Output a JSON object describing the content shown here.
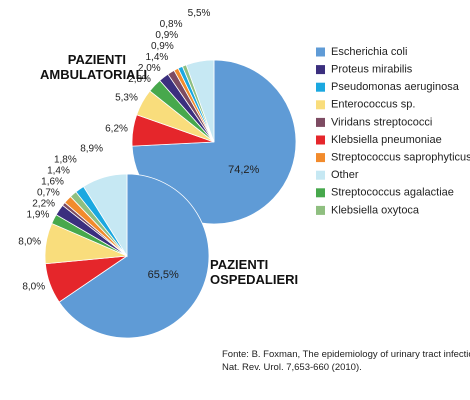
{
  "legend": {
    "labels": [
      "Escherichia coli",
      "Proteus mirabilis",
      "Pseudomonas aeruginosa",
      "Enterococcus sp.",
      "Viridans streptococci",
      "Klebsiella pneumoniae",
      "Streptococcus saprophyticus",
      "Other",
      "Streptococcus agalactiae",
      "Klebsiella oxytoca"
    ],
    "colors": [
      "#5f9bd6",
      "#3b2f7e",
      "#1ba8e0",
      "#f9dd7c",
      "#7d4b62",
      "#e5262b",
      "#f28b2c",
      "#c6e8f3",
      "#47a84c",
      "#8fbf80"
    ]
  },
  "chart_data": [
    {
      "type": "pie",
      "title": "PAZIENTI AMBULATORIALI",
      "categories": [
        "Escherichia coli",
        "Klebsiella pneumoniae",
        "Enterococcus sp.",
        "Streptococcus agalactiae",
        "Proteus mirabilis",
        "Viridans streptococci",
        "Streptococcus saprophyticus",
        "Pseudomonas aeruginosa",
        "Klebsiella oxytoca",
        "Other"
      ],
      "values": [
        74.2,
        6.2,
        5.3,
        2.8,
        2.0,
        1.4,
        0.9,
        0.9,
        0.8,
        5.5
      ],
      "value_labels": [
        "74,2%",
        "6,2%",
        "5,3%",
        "2,8%",
        "2,0%",
        "1,4%",
        "0,9%",
        "0,9%",
        "0,8%",
        "5,5%"
      ]
    },
    {
      "type": "pie",
      "title": "PAZIENTI OSPEDALIERI",
      "categories": [
        "Escherichia coli",
        "Klebsiella pneumoniae",
        "Enterococcus sp.",
        "Streptococcus agalactiae",
        "Proteus mirabilis",
        "Viridans streptococci",
        "Streptococcus saprophyticus",
        "Klebsiella oxytoca",
        "Pseudomonas aeruginosa",
        "Other"
      ],
      "values": [
        65.5,
        8.0,
        8.0,
        1.9,
        2.2,
        0.7,
        1.6,
        1.4,
        1.8,
        8.9
      ],
      "value_labels": [
        "65,5%",
        "8,0%",
        "8,0%",
        "1,9%",
        "2,2%",
        "0,7%",
        "1,6%",
        "1,4%",
        "1,8%",
        "8,9%"
      ]
    }
  ],
  "source": [
    "Fonte: B. Foxman, The epidemiology of urinary tract infection,",
    "Nat. Rev. Urol. 7,653-660 (2010)."
  ]
}
